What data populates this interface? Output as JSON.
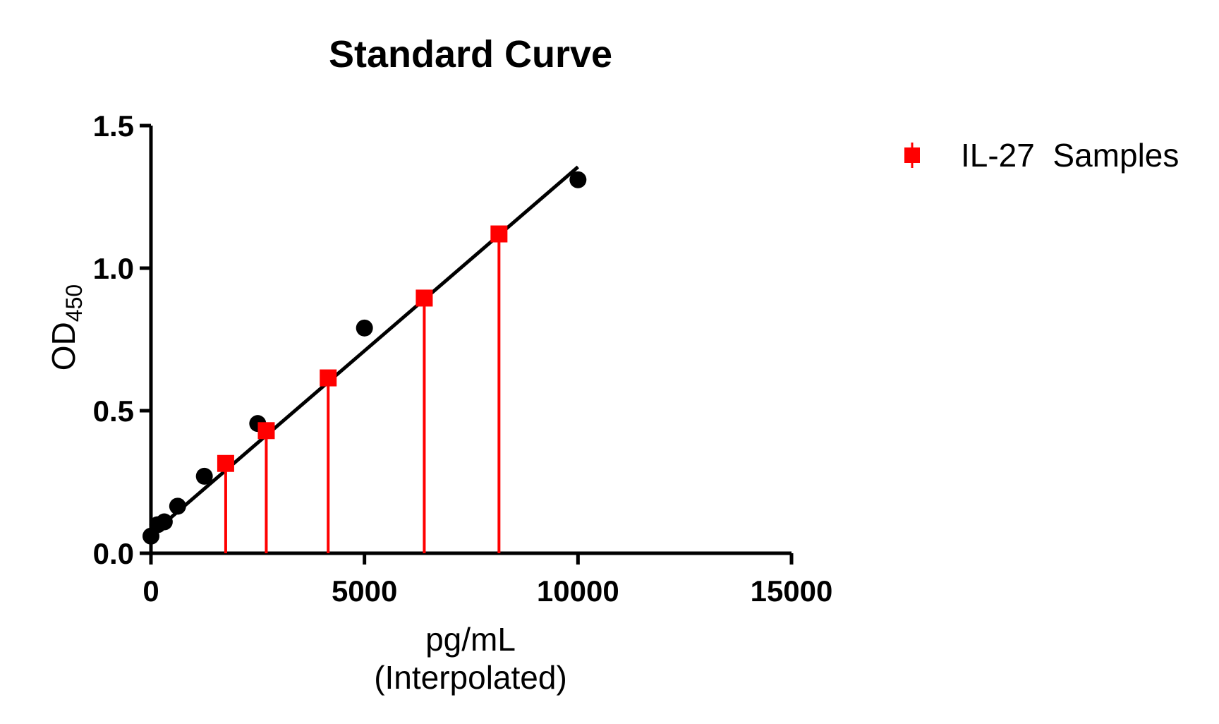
{
  "chart_data": {
    "type": "scatter",
    "title": "Standard Curve",
    "xlabel_line1": "pg/mL",
    "xlabel_line2": "(Interpolated)",
    "ylabel_main": "OD",
    "ylabel_sub": "450",
    "xlim": [
      0,
      15000
    ],
    "ylim": [
      0,
      1.5
    ],
    "x_ticks": [
      0,
      5000,
      10000,
      15000
    ],
    "x_tick_labels": [
      "0",
      "5000",
      "10000",
      "15000"
    ],
    "y_ticks": [
      0,
      0.5,
      1.0,
      1.5
    ],
    "y_tick_labels": [
      "0.0",
      "0.5",
      "1.0",
      "1.5"
    ],
    "grid": false,
    "legend_position": "top-right",
    "series": [
      {
        "kind": "standards",
        "color": "#000000",
        "marker": "circle",
        "x": [
          0,
          156,
          312,
          625,
          1250,
          2500,
          5000,
          10000
        ],
        "y": [
          0.06,
          0.1,
          0.11,
          0.165,
          0.27,
          0.455,
          0.79,
          1.31
        ]
      },
      {
        "kind": "fit",
        "color": "#000000",
        "x": [
          0,
          10000
        ],
        "y": [
          0.065,
          1.355
        ]
      },
      {
        "name": "IL-27  Samples",
        "kind": "samples",
        "color": "#ff0000",
        "marker": "square",
        "x": [
          1750,
          2700,
          4150,
          6400,
          8150
        ],
        "y": [
          0.315,
          0.43,
          0.615,
          0.895,
          1.12
        ]
      }
    ]
  }
}
